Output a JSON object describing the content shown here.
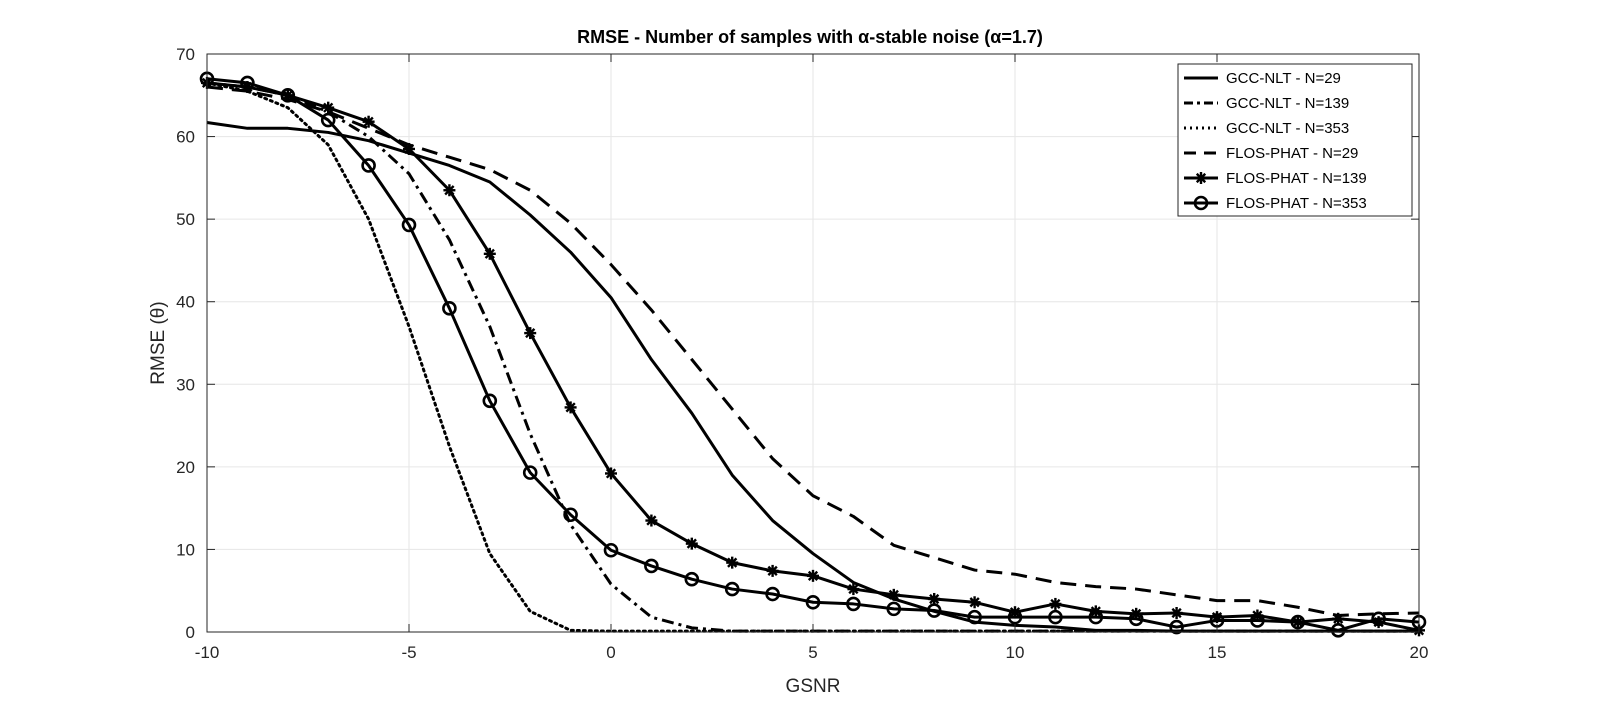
{
  "chart_data": {
    "type": "line",
    "title": "RMSE - Number of samples with α-stable noise (α=1.7)",
    "xlabel": "GSNR",
    "ylabel": "RMSE (θ)",
    "xlim": [
      -10,
      20
    ],
    "ylim": [
      0,
      70
    ],
    "xticks": [
      -10,
      -5,
      0,
      5,
      10,
      15,
      20
    ],
    "yticks": [
      0,
      10,
      20,
      30,
      40,
      50,
      60,
      70
    ],
    "grid": true,
    "legend_position": "top-right",
    "x": [
      -10,
      -9,
      -8,
      -7,
      -6,
      -5,
      -4,
      -3,
      -2,
      -1,
      0,
      1,
      2,
      3,
      4,
      5,
      6,
      7,
      8,
      9,
      10,
      11,
      12,
      13,
      14,
      15,
      16,
      17,
      18,
      19,
      20
    ],
    "series": [
      {
        "name": "GCC-NLT - N=29",
        "style": "solid",
        "marker": "none",
        "color": "#000000",
        "values": [
          61.7,
          61.0,
          61.0,
          60.5,
          59.5,
          58.0,
          56.5,
          54.5,
          50.5,
          46.0,
          40.5,
          33.0,
          26.5,
          19.0,
          13.5,
          9.5,
          6.0,
          4.0,
          2.5,
          1.2,
          0.8,
          0.6,
          0.2,
          0.2,
          0.1,
          0.1,
          0.1,
          0.1,
          0.1,
          0.1,
          0.1
        ]
      },
      {
        "name": "GCC-NLT - N=139",
        "style": "dashdot",
        "marker": "none",
        "color": "#000000",
        "values": [
          66.5,
          66.0,
          65.0,
          63.0,
          60.0,
          55.5,
          47.5,
          37.0,
          24.0,
          13.0,
          5.8,
          1.8,
          0.5,
          0.1,
          0.1,
          0.1,
          0.1,
          0.1,
          0.1,
          0.1,
          0.1,
          0.1,
          0.1,
          0.1,
          0.1,
          0.1,
          0.1,
          0.1,
          0.1,
          0.1,
          0.1
        ]
      },
      {
        "name": "GCC-NLT - N=353",
        "style": "dotted",
        "marker": "none",
        "color": "#000000",
        "values": [
          66.5,
          65.5,
          63.5,
          59.0,
          50.0,
          37.0,
          22.5,
          9.5,
          2.5,
          0.2,
          0.1,
          0.1,
          0.1,
          0.1,
          0.1,
          0.1,
          0.1,
          0.1,
          0.1,
          0.1,
          0.1,
          0.1,
          0.1,
          0.1,
          0.1,
          0.1,
          0.1,
          0.1,
          0.1,
          0.1,
          0.1
        ]
      },
      {
        "name": "FLOS-PHAT - N=29",
        "style": "dashed",
        "marker": "none",
        "color": "#000000",
        "values": [
          66.0,
          65.5,
          64.5,
          63.0,
          61.0,
          59.0,
          57.5,
          56.0,
          53.5,
          49.5,
          44.5,
          39.0,
          33.0,
          27.0,
          21.0,
          16.5,
          14.0,
          10.5,
          9.0,
          7.5,
          7.0,
          6.0,
          5.5,
          5.2,
          4.5,
          3.8,
          3.8,
          3.0,
          2.0,
          2.2,
          2.3
        ]
      },
      {
        "name": "FLOS-PHAT - N=139",
        "style": "solid",
        "marker": "star",
        "color": "#000000",
        "values": [
          66.5,
          66.0,
          65.0,
          63.5,
          61.8,
          58.5,
          53.5,
          45.8,
          36.2,
          27.2,
          19.2,
          13.5,
          10.7,
          8.4,
          7.4,
          6.8,
          5.2,
          4.5,
          4.0,
          3.6,
          2.4,
          3.4,
          2.5,
          2.2,
          2.3,
          1.8,
          2.0,
          1.2,
          1.6,
          1.2,
          0.2
        ]
      },
      {
        "name": "FLOS-PHAT - N=353",
        "style": "solid",
        "marker": "circle",
        "color": "#000000",
        "values": [
          67.0,
          66.5,
          65.0,
          62.0,
          56.5,
          49.3,
          39.2,
          28.0,
          19.3,
          14.2,
          9.9,
          8.0,
          6.4,
          5.2,
          4.6,
          3.6,
          3.4,
          2.8,
          2.6,
          1.8,
          1.8,
          1.8,
          1.8,
          1.6,
          0.6,
          1.4,
          1.4,
          1.2,
          0.2,
          1.6,
          1.2
        ]
      }
    ]
  }
}
